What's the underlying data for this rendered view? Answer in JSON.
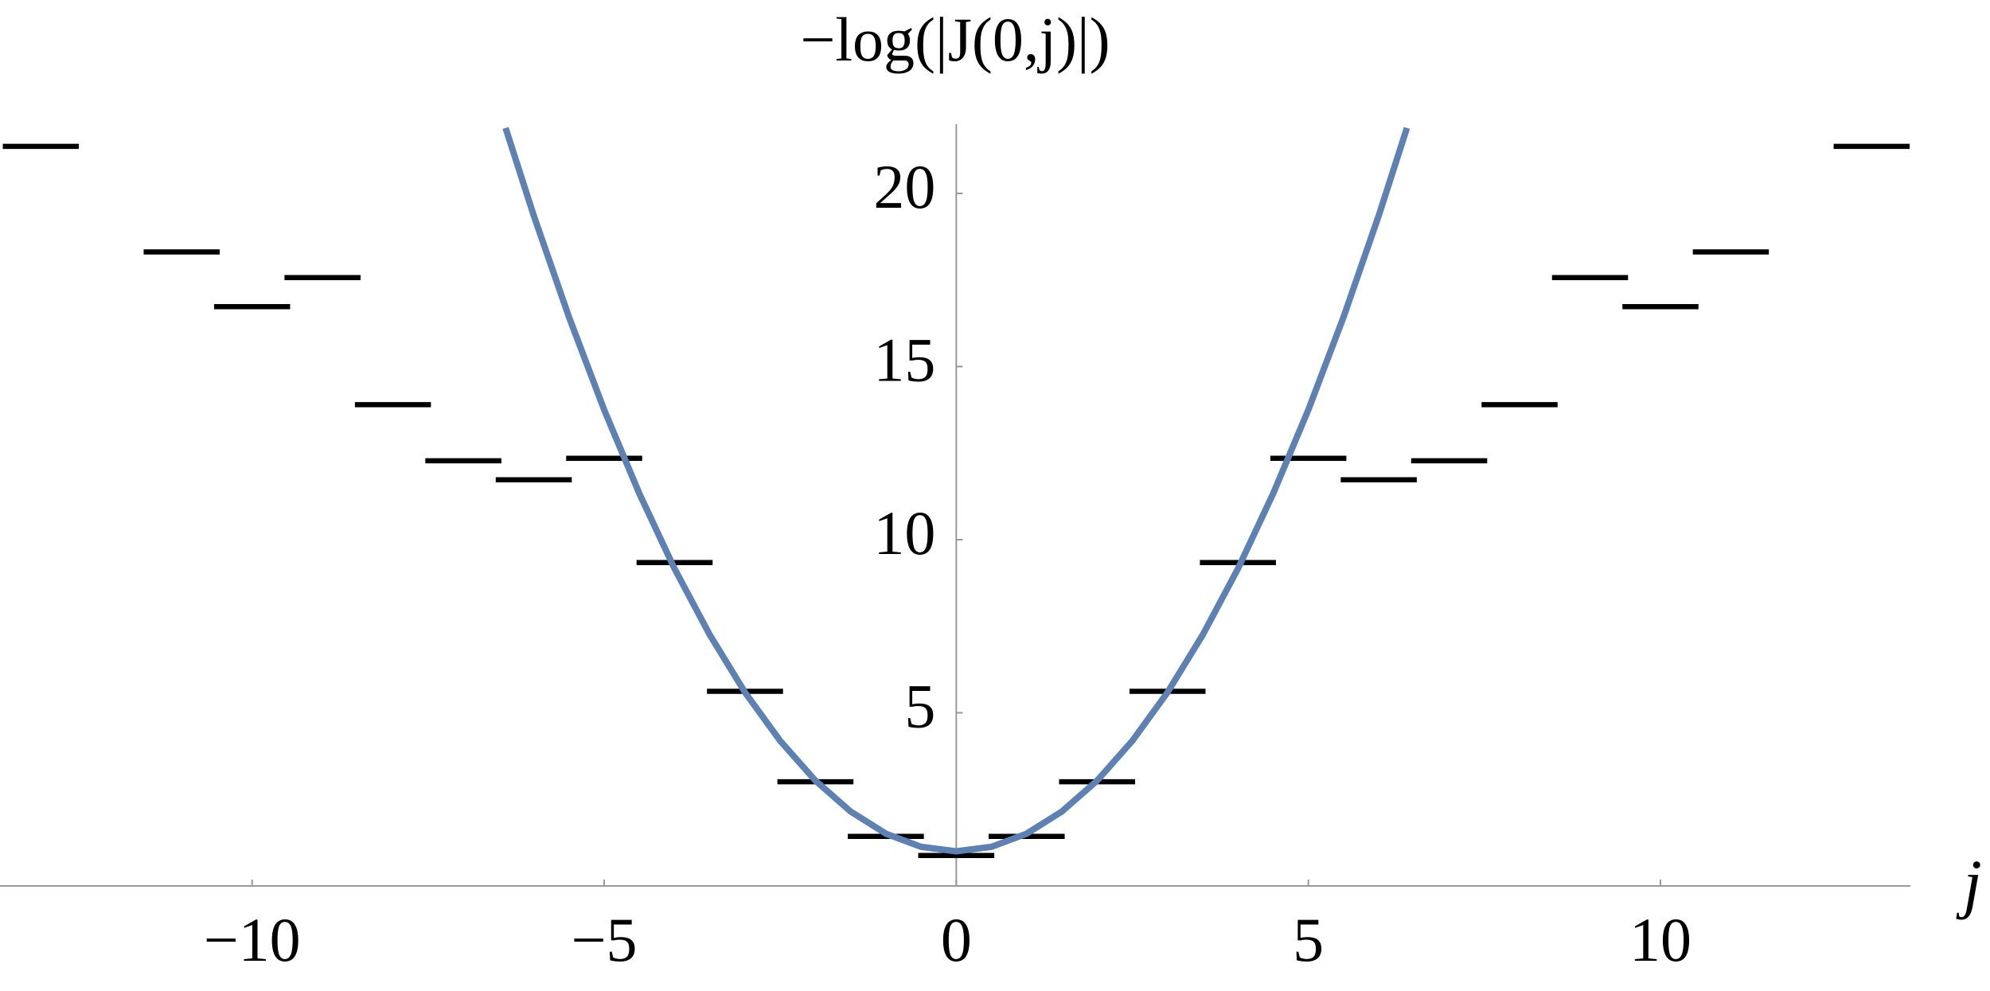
{
  "chart_data": {
    "type": "line",
    "title": "−log(|J(0,j)|)",
    "x_label": "j",
    "xlim": [
      -13.58,
      13.55
    ],
    "ylim": [
      0,
      22
    ],
    "xticks": [
      {
        "value": -10,
        "label": "−10"
      },
      {
        "value": -5,
        "label": "−5"
      },
      0,
      5,
      10
    ],
    "yticks": [
      5,
      10,
      15,
      20
    ],
    "series": [
      {
        "type": "steps",
        "color": "#000000",
        "x": [
          -13,
          -12,
          -11,
          -10,
          -9,
          -8,
          -7,
          -6,
          -5,
          -4,
          -3,
          -2,
          -1,
          0,
          1,
          2,
          3,
          4,
          5,
          6,
          7,
          8,
          9,
          10,
          11,
          12,
          13
        ],
        "values": [
          21.36,
          null,
          18.31,
          16.73,
          17.57,
          13.9,
          12.28,
          11.73,
          12.35,
          9.34,
          5.62,
          3.01,
          1.43,
          0.88,
          1.43,
          3.01,
          5.62,
          9.34,
          12.35,
          11.73,
          12.28,
          13.9,
          17.57,
          16.73,
          18.31,
          null,
          21.36
        ]
      },
      {
        "type": "curve",
        "color": "#5e81b5",
        "x": [
          -6.4,
          -6,
          -5.5,
          -5,
          -4.5,
          -4,
          -3.5,
          -3,
          -2.5,
          -2,
          -1.5,
          -1,
          -0.5,
          0,
          0.5,
          1,
          1.5,
          2,
          2.5,
          3,
          3.5,
          4,
          4.5,
          5,
          5.5,
          6,
          6.4
        ],
        "values": [
          21.89,
          19.36,
          16.43,
          13.75,
          11.33,
          9.16,
          7.25,
          5.59,
          4.19,
          3.04,
          2.15,
          1.51,
          1.13,
          1,
          1.13,
          1.51,
          2.15,
          3.04,
          4.19,
          5.59,
          7.25,
          9.16,
          11.33,
          13.75,
          16.43,
          19.36,
          21.89
        ]
      }
    ]
  }
}
